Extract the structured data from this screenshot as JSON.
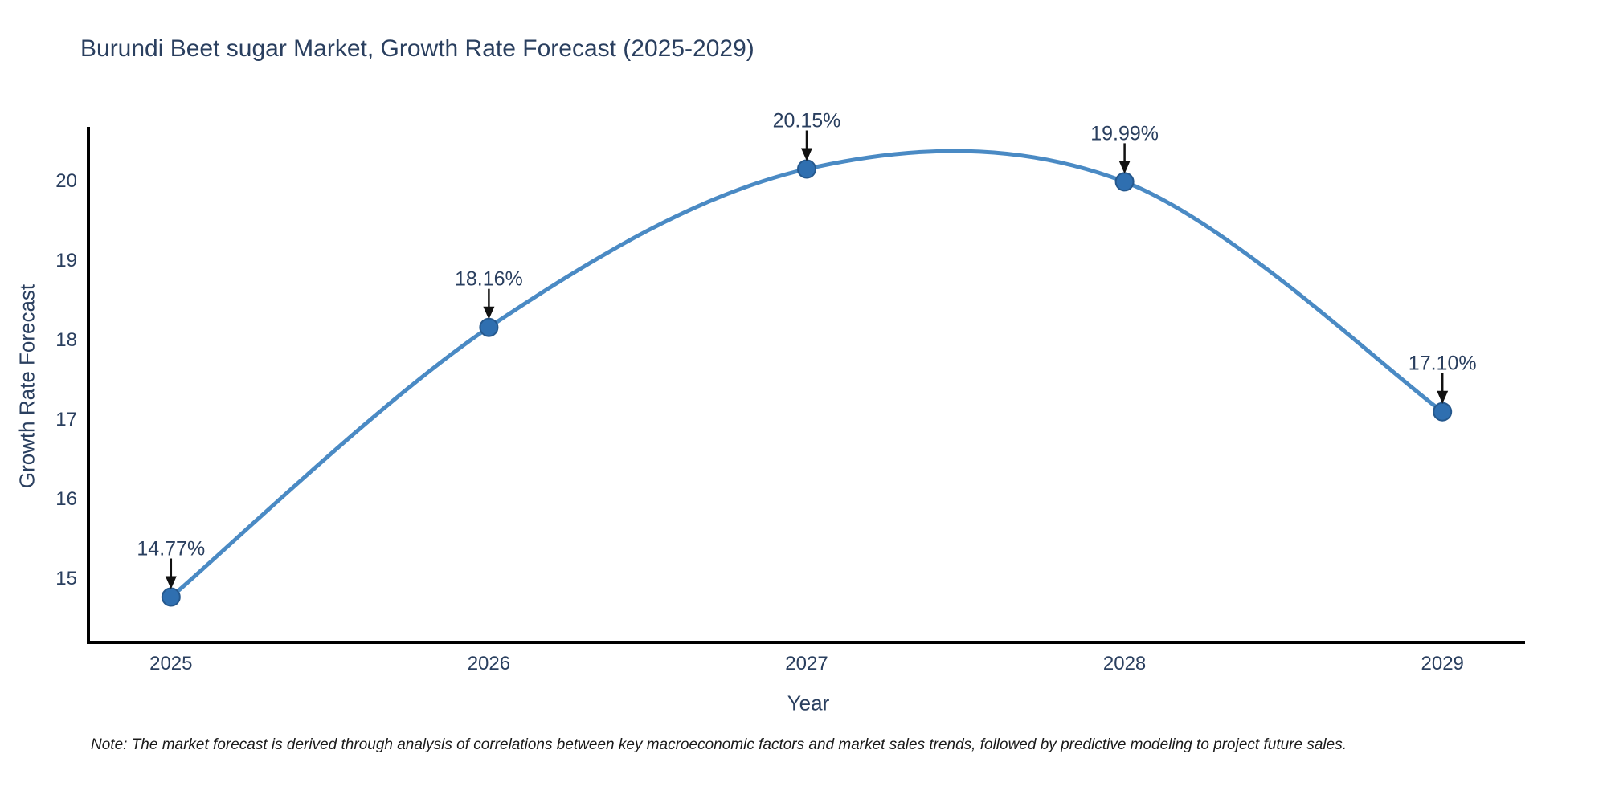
{
  "title": "Burundi Beet sugar Market, Growth Rate Forecast (2025-2029)",
  "note": "Note: The market forecast is derived through analysis of correlations between key macroeconomic factors and market sales trends, followed by predictive modeling to project future sales.",
  "chart_data": {
    "type": "line",
    "title": "Burundi Beet sugar Market, Growth Rate Forecast (2025-2029)",
    "xlabel": "Year",
    "ylabel": "Growth Rate Forecast",
    "x": [
      2025,
      2026,
      2027,
      2028,
      2029
    ],
    "values": [
      14.77,
      18.16,
      20.15,
      19.99,
      17.1
    ],
    "point_labels": [
      "14.77%",
      "18.16%",
      "20.15%",
      "19.99%",
      "17.10%"
    ],
    "xticks": [
      "2025",
      "2026",
      "2027",
      "2028",
      "2029"
    ],
    "yticks": [
      15,
      16,
      17,
      18,
      19,
      20
    ],
    "xlim": [
      2024.74,
      2029.26
    ],
    "ylim": [
      14.2,
      20.66
    ],
    "grid": false,
    "legend": false,
    "line_shape": "spline",
    "colors": {
      "line": "#4a8ac4",
      "marker_fill": "#2f6fb0",
      "marker_edge": "#25588d",
      "axis": "#000000",
      "tick_text": "#2a3f5f",
      "annotation_text": "#2a3f5f",
      "arrow": "#111111"
    }
  }
}
